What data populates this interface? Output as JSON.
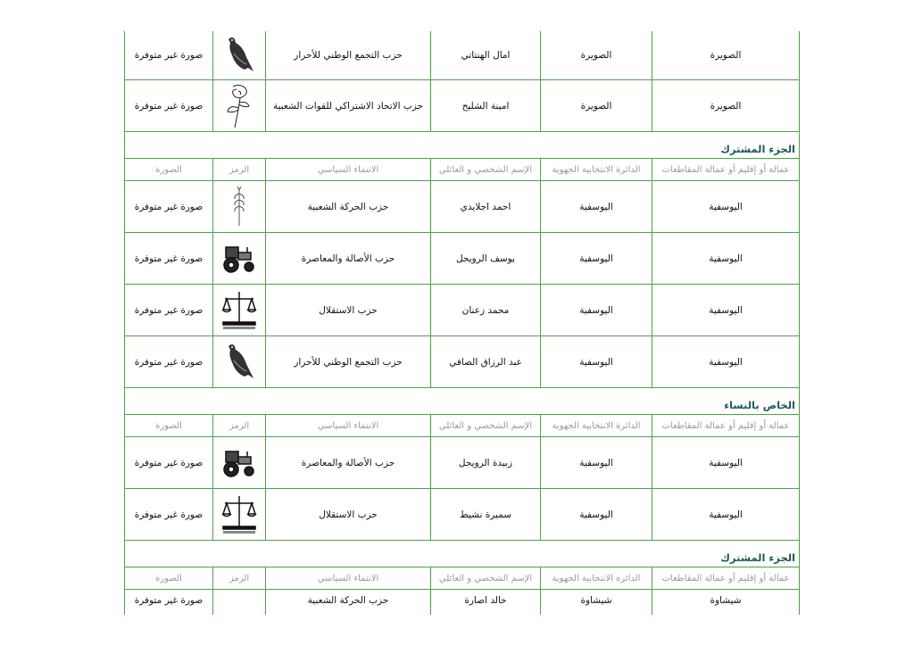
{
  "columns": [
    "عمالة أو إقليم أو عمالة المقاطعات",
    "الدائرة الانتخابية الجهوية",
    "الإسم الشخصي و العائلي",
    "الانتماء السياسي",
    "الرمز",
    "الصورة"
  ],
  "colors": {
    "border": "#4aa34a",
    "section_title": "#1e5d4c",
    "header_text": "#9a9a9a"
  },
  "blocks": [
    {
      "type": "row",
      "prefecture": "الصويرة",
      "district": "الصويرة",
      "name": "امال الهنتاتي",
      "party": "حزب التجمع الوطني للأحرار",
      "symbol": "dove-icon",
      "photo": "صورة غير متوفرة"
    },
    {
      "type": "row",
      "prefecture": "الصويرة",
      "district": "الصويرة",
      "name": "امينة الشليح",
      "party": "حزب الاتحاد الاشتراكي للقوات الشعبية",
      "symbol": "rose-icon",
      "photo": "صورة غير متوفرة"
    },
    {
      "type": "section",
      "title": "الجزء المشترك"
    },
    {
      "type": "header"
    },
    {
      "type": "row",
      "prefecture": "اليوسفية",
      "district": "اليوسفية",
      "name": "احمد اجلايدي",
      "party": "حزب الحركة الشعبية",
      "symbol": "wheat-icon",
      "photo": "صورة غير متوفرة"
    },
    {
      "type": "row",
      "prefecture": "اليوسفية",
      "district": "اليوسفية",
      "name": "يوسف الرويجل",
      "party": "حزب الأصالة والمعاصرة",
      "symbol": "tractor-icon",
      "photo": "صورة غير متوفرة"
    },
    {
      "type": "row",
      "prefecture": "اليوسفية",
      "district": "اليوسفية",
      "name": "محمد زعنان",
      "party": "حزب الاستقلال",
      "symbol": "scales-icon",
      "photo": "صورة غير متوفرة"
    },
    {
      "type": "row",
      "prefecture": "اليوسفية",
      "district": "اليوسفية",
      "name": "عبد الرزاق الصافي",
      "party": "حزب التجمع الوطني للأحرار",
      "symbol": "dove-icon",
      "photo": "صورة غير متوفرة"
    },
    {
      "type": "section",
      "title": "الخاص بالنساء"
    },
    {
      "type": "header"
    },
    {
      "type": "row",
      "prefecture": "اليوسفية",
      "district": "اليوسفية",
      "name": "زبيدة الرويجل",
      "party": "حزب الأصالة والمعاصرة",
      "symbol": "tractor-icon",
      "photo": "صورة غير متوفرة"
    },
    {
      "type": "row",
      "prefecture": "اليوسفية",
      "district": "اليوسفية",
      "name": "سميرة نشيط",
      "party": "حزب الاستقلال",
      "symbol": "scales-icon",
      "photo": "صورة غير متوفرة"
    },
    {
      "type": "section",
      "title": "الجزء المشترك"
    },
    {
      "type": "header"
    },
    {
      "type": "row",
      "prefecture": "شيشاوة",
      "district": "شيشاوة",
      "name": "خالد اصارة",
      "party": "حزب الحركة الشعبية",
      "symbol": "",
      "photo": "صورة غير متوفرة"
    }
  ]
}
